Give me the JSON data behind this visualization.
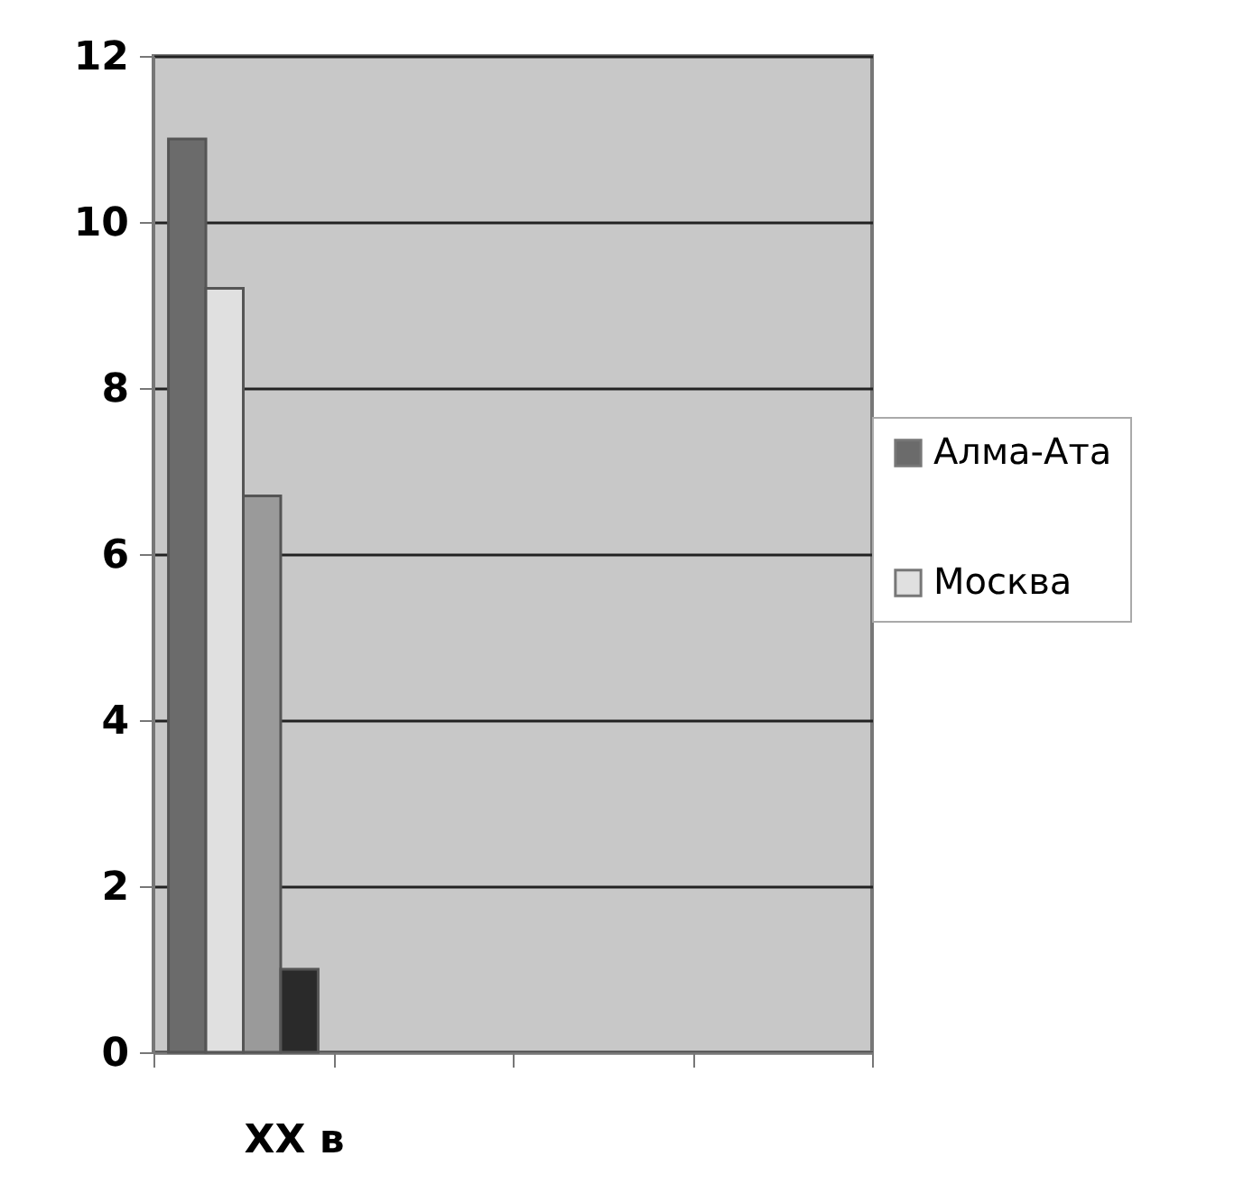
{
  "chart_data": {
    "type": "bar",
    "categories": [
      "XX в",
      null,
      null,
      null
    ],
    "series": [
      {
        "name": "Алма-Ата",
        "color": "#6b6b6b",
        "values": [
          11,
          null,
          null,
          null
        ]
      },
      {
        "name": "Москва",
        "color": "#e0e0e0",
        "values": [
          9.2,
          null,
          null,
          null
        ]
      },
      {
        "color": "#9a9a9a",
        "values": [
          6.7,
          null,
          null,
          null
        ]
      },
      {
        "color": "#2a2a2a",
        "values": [
          1,
          null,
          null,
          null
        ]
      }
    ],
    "ylim": [
      0,
      12
    ],
    "yticks": [
      0,
      2,
      4,
      6,
      8,
      10,
      12
    ],
    "grid": "y",
    "legend": "right"
  }
}
